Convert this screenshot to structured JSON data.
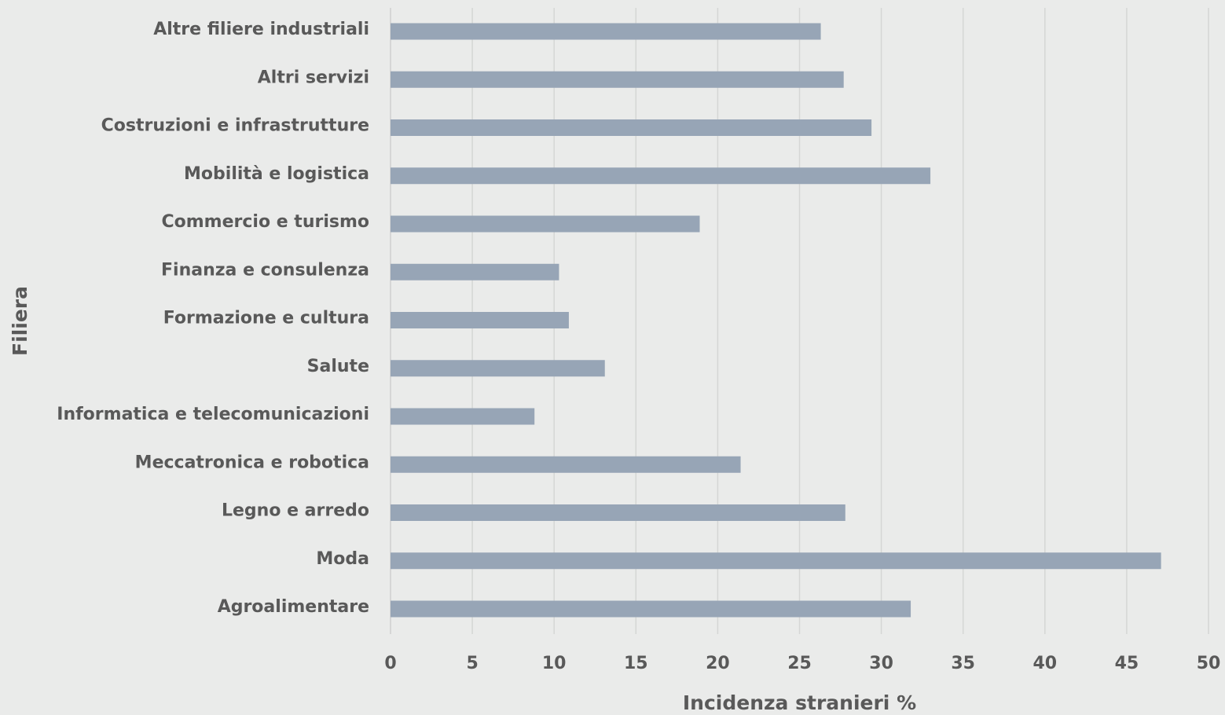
{
  "chart_data": {
    "type": "bar",
    "orientation": "horizontal",
    "xlabel": "Incidenza stranieri %",
    "ylabel": "Filiera",
    "xlim": [
      0,
      50
    ],
    "xticks": [
      "0",
      "5",
      "10",
      "15",
      "20",
      "25",
      "30",
      "35",
      "40",
      "45",
      "50"
    ],
    "grid": true,
    "bar_color": "#97a5b6",
    "categories": [
      "Altre filiere industriali",
      "Altri servizi",
      "Costruzioni e infrastrutture",
      "Mobilità e logistica",
      "Commercio e turismo",
      "Finanza e consulenza",
      "Formazione e cultura",
      "Salute",
      "Informatica e telecomunicazioni",
      "Meccatronica e robotica",
      "Legno e arredo",
      "Moda",
      "Agroalimentare"
    ],
    "values": [
      26.3,
      27.7,
      29.4,
      33.0,
      18.9,
      10.3,
      10.9,
      13.1,
      8.8,
      21.4,
      27.8,
      47.1,
      31.8
    ]
  }
}
